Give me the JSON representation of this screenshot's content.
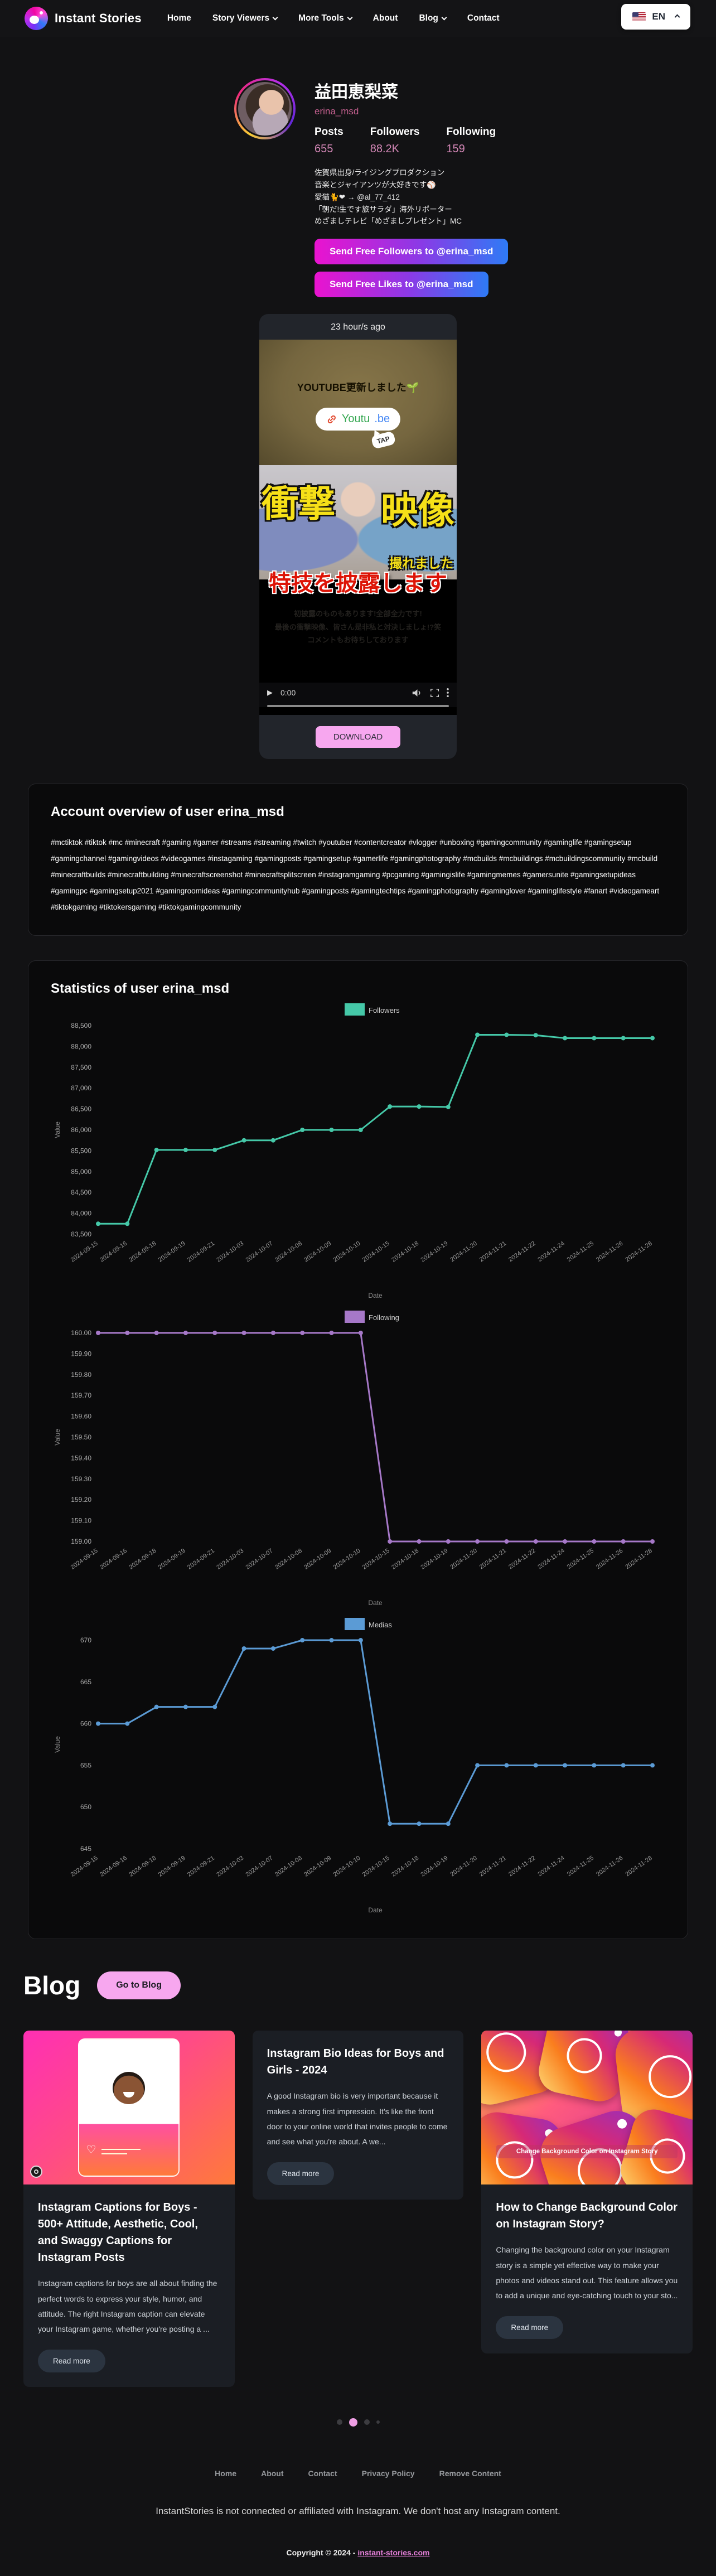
{
  "header": {
    "brand": "Instant Stories",
    "nav": [
      {
        "label": "Home",
        "dropdown": false
      },
      {
        "label": "Story Viewers",
        "dropdown": true
      },
      {
        "label": "More Tools",
        "dropdown": true
      },
      {
        "label": "About",
        "dropdown": false
      },
      {
        "label": "Blog",
        "dropdown": true
      },
      {
        "label": "Contact",
        "dropdown": false
      }
    ],
    "lang": "EN"
  },
  "profile": {
    "name": "益田恵梨菜",
    "username": "erina_msd",
    "stats": [
      {
        "label": "Posts",
        "value": "655"
      },
      {
        "label": "Followers",
        "value": "88.2K"
      },
      {
        "label": "Following",
        "value": "159"
      }
    ],
    "bio_lines": [
      "佐賀県出身/ライジングプロダクション",
      "音楽とジャイアンツが大好きです⚾",
      "愛猫🐈❤ → @al_77_412",
      "「朝だ!生です旅サラダ」海外リポーター",
      "めざましテレビ「めざましプレゼント」MC"
    ],
    "followers_button": "Send Free Followers to @erina_msd",
    "likes_button": "Send Free Likes to @erina_msd"
  },
  "story": {
    "time": "23 hour/s ago",
    "overlay_title": "YOUTUBE更新しました🌱",
    "link_label_green": "Youtu",
    "link_label_blue": ".be",
    "tap": "TAP",
    "big_text_1": "衝撃",
    "big_text_2": "映像",
    "big_text_3": "撮れました",
    "red_text": "特技を披露します",
    "caption_line1": "初披露のものもあります!全部全力です!",
    "caption_line2": "最後の衝撃映像、皆さん是非私と対決しましょ!?笑",
    "caption_line3": "コメントもお待ちしております",
    "player_time": "0:00",
    "download": "DOWNLOAD"
  },
  "overview": {
    "title": "Account overview of user erina_msd",
    "hashtags": "#mctiktok #tiktok #mc #minecraft #gaming #gamer #streams #streaming #twitch #youtuber #contentcreator #vlogger #unboxing #gamingcommunity #gaminglife #gamingsetup #gamingchannel #gamingvideos #videogames #instagaming #gamingposts #gamingsetup #gamerlife #gamingphotography #mcbuilds #mcbuildings #mcbuildingscommunity #mcbuild #minecraftbuilds #minecraftbuilding #minecraftscreenshot #minecraftsplitscreen #instagramgaming #pcgaming #gamingislife #gamingmemes #gamersunite #gamingsetupideas #gamingpc #gamingsetup2021 #gamingroomideas #gamingcommunityhub #gamingposts #gamingtechtips #gamingphotography #gaminglover #gaminglifestyle #fanart #videogameart #tiktokgaming #tiktokersgaming #tiktokgamingcommunity"
  },
  "statistics": {
    "title": "Statistics of user erina_msd"
  },
  "chart_data": [
    {
      "type": "line",
      "legend": "Followers",
      "color": "#45c8a8",
      "xlabel": "Date",
      "ylabel": "Value",
      "ylim": [
        83500,
        88500
      ],
      "ytick_step": 500,
      "ytick_format": "thousands",
      "x": [
        "2024-09-15",
        "2024-09-16",
        "2024-09-18",
        "2024-09-19",
        "2024-09-21",
        "2024-10-03",
        "2024-10-07",
        "2024-10-08",
        "2024-10-09",
        "2024-10-10",
        "2024-10-15",
        "2024-10-18",
        "2024-10-19",
        "2024-11-20",
        "2024-11-21",
        "2024-11-22",
        "2024-11-24",
        "2024-11-25",
        "2024-11-26",
        "2024-11-28"
      ],
      "values": [
        83750,
        83750,
        85520,
        85520,
        85520,
        85750,
        85750,
        86000,
        86000,
        86000,
        86560,
        86560,
        86550,
        88280,
        88280,
        88270,
        88200,
        88200,
        88200,
        88200
      ]
    },
    {
      "type": "line",
      "legend": "Following",
      "color": "#a678c8",
      "xlabel": "Date",
      "ylabel": "Value",
      "ylim": [
        159.0,
        160.0
      ],
      "ytick_step": 0.1,
      "ytick_format": "fixed2",
      "x": [
        "2024-09-15",
        "2024-09-16",
        "2024-09-18",
        "2024-09-19",
        "2024-09-21",
        "2024-10-03",
        "2024-10-07",
        "2024-10-08",
        "2024-10-09",
        "2024-10-10",
        "2024-10-15",
        "2024-10-18",
        "2024-10-19",
        "2024-11-20",
        "2024-11-21",
        "2024-11-22",
        "2024-11-24",
        "2024-11-25",
        "2024-11-26",
        "2024-11-28"
      ],
      "values": [
        160,
        160,
        160,
        160,
        160,
        160,
        160,
        160,
        160,
        160,
        159,
        159,
        159,
        159,
        159,
        159,
        159,
        159,
        159,
        159
      ]
    },
    {
      "type": "line",
      "legend": "Medias",
      "color": "#5b9bd5",
      "xlabel": "Date",
      "ylabel": "Value",
      "ylim": [
        645,
        670
      ],
      "ytick_step": 5,
      "ytick_format": "int",
      "x": [
        "2024-09-15",
        "2024-09-16",
        "2024-09-18",
        "2024-09-19",
        "2024-09-21",
        "2024-10-03",
        "2024-10-07",
        "2024-10-08",
        "2024-10-09",
        "2024-10-10",
        "2024-10-15",
        "2024-10-18",
        "2024-10-19",
        "2024-11-20",
        "2024-11-21",
        "2024-11-22",
        "2024-11-24",
        "2024-11-25",
        "2024-11-26",
        "2024-11-28"
      ],
      "values": [
        660,
        660,
        662,
        662,
        662,
        669,
        669,
        670,
        670,
        670,
        648,
        648,
        648,
        655,
        655,
        655,
        655,
        655,
        655,
        655
      ]
    }
  ],
  "blog": {
    "title": "Blog",
    "goto": "Go to Blog",
    "cards": [
      {
        "title": "Instagram Captions for Boys - 500+ Attitude, Aesthetic, Cool, and Swaggy Captions for Instagram Posts",
        "excerpt": "Instagram captions for boys are all about finding the perfect words to express your style, humor, and attitude. The right Instagram caption can elevate your Instagram game, whether you're posting a ...",
        "read_more": "Read more"
      },
      {
        "title": "Instagram Bio Ideas for Boys and Girls - 2024",
        "excerpt": "A good Instagram bio is very important because it makes a strong first impression. It's like the front door to your online world that invites people to come and see what you're about. A we...",
        "read_more": "Read more"
      },
      {
        "title": "How to Change Background Color on Instagram Story?",
        "excerpt": "Changing the background color on your Instagram story is a simple yet effective way to make your photos and videos stand out. This feature allows you to add a unique and eye-catching touch to your sto...",
        "read_more": "Read more",
        "image_caption": "Change Background Color on Instagram Story"
      }
    ]
  },
  "footer": {
    "links": [
      "Home",
      "About",
      "Contact",
      "Privacy Policy",
      "Remove Content"
    ],
    "disclaimer": "InstantStories is not connected or affiliated with Instagram. We don't host any Instagram content.",
    "copyright_prefix": "Copyright © 2024 - ",
    "copyright_link": "instant-stories.com"
  }
}
